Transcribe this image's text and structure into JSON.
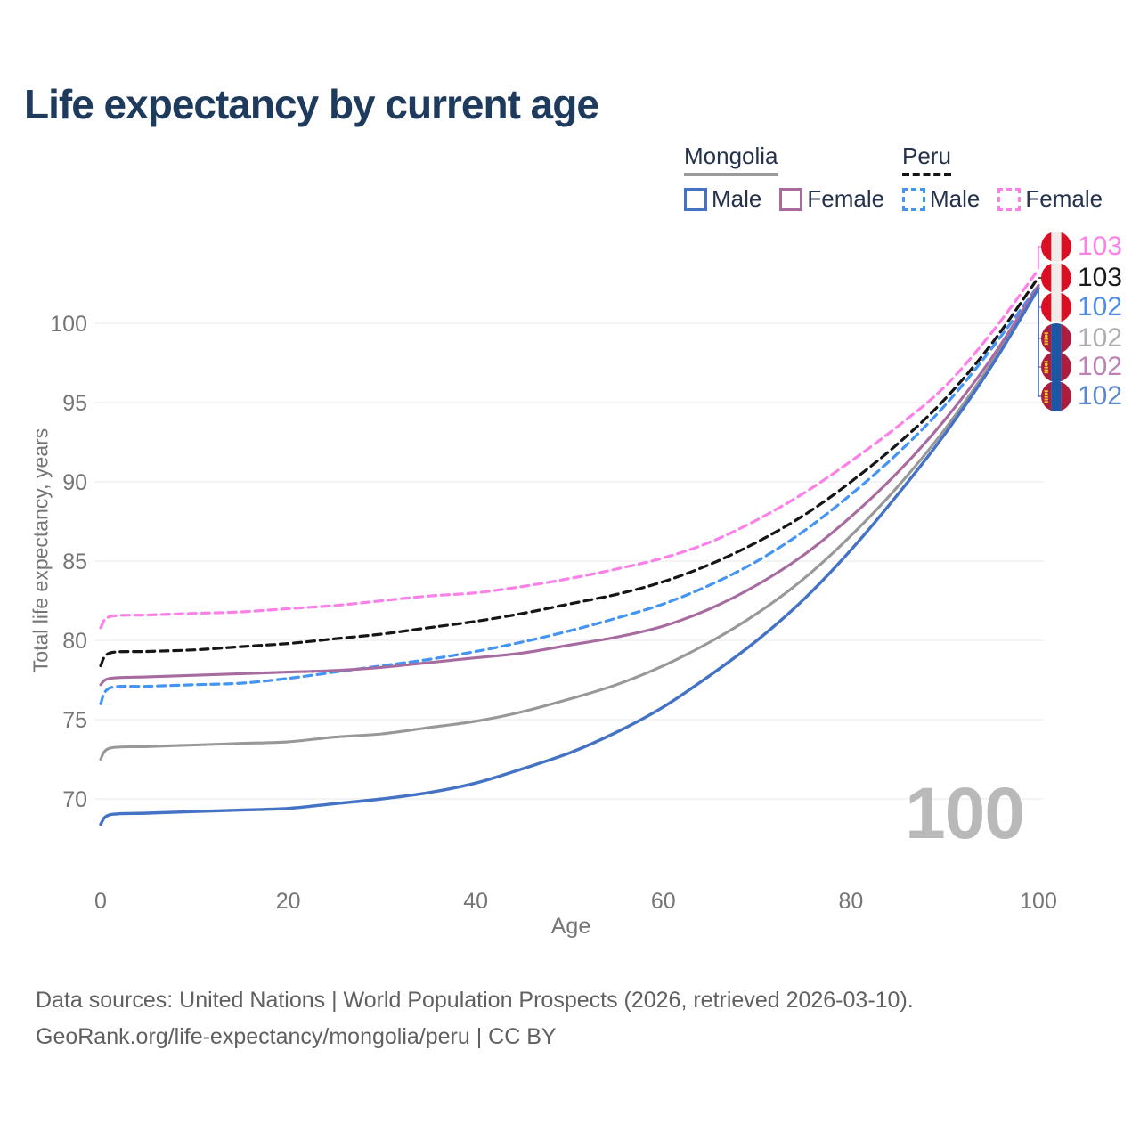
{
  "header": {
    "title": "Life expectancy by current age"
  },
  "legend": {
    "mongolia": {
      "label": "Mongolia",
      "male": "Male",
      "female": "Female"
    },
    "peru": {
      "label": "Peru",
      "male": "Male",
      "female": "Female"
    }
  },
  "y_axis": {
    "label": "Total life expectancy, years",
    "ticks": [
      70,
      75,
      80,
      85,
      90,
      95,
      100
    ]
  },
  "x_axis": {
    "label": "Age",
    "ticks": [
      0,
      20,
      40,
      60,
      80,
      100
    ]
  },
  "watermark": {
    "current_age": "100"
  },
  "end_labels": [
    {
      "series_id": "peru_female",
      "country": "Peru",
      "flag": "peru",
      "value": "103",
      "color": "#fb80e8"
    },
    {
      "series_id": "peru_avg",
      "country": "Peru",
      "flag": "peru",
      "value": "103",
      "color": "#1a1a1a"
    },
    {
      "series_id": "peru_male",
      "country": "Peru",
      "flag": "peru",
      "value": "102",
      "color": "#4a8ce9"
    },
    {
      "series_id": "mongolia_avg",
      "country": "Mongolia",
      "flag": "mongolia",
      "value": "102",
      "color": "#adadad"
    },
    {
      "series_id": "mongolia_female",
      "country": "Mongolia",
      "flag": "mongolia",
      "value": "102",
      "color": "#bc82b5"
    },
    {
      "series_id": "mongolia_male",
      "country": "Mongolia",
      "flag": "mongolia",
      "value": "102",
      "color": "#5b87cc"
    }
  ],
  "footer": {
    "line1": "Data sources: United Nations | World Population Prospects (2026, retrieved 2026-03-10).",
    "line2": "GeoRank.org/life-expectancy/mongolia/peru | CC BY"
  },
  "colors": {
    "title": "#1e3a5c",
    "legend_text": "#25324b",
    "axis_text": "#757575",
    "grid": "#e9e9e9",
    "footer_text": "#606060",
    "watermark": "#b9b9b9",
    "mongolia_underline": "#9a9a9a",
    "peru_underline": "#141414"
  },
  "flags": {
    "peru": {
      "red": "#d91023",
      "white": "#f0ece9"
    },
    "mongolia": {
      "red": "#ad1e3e",
      "blue": "#1c57a6",
      "yellow": "#f8cf2c"
    }
  },
  "chart_data": {
    "type": "line",
    "title": "Life expectancy by current age",
    "xlabel": "Age",
    "ylabel": "Total life expectancy, years",
    "xlim": [
      0,
      100
    ],
    "ylim": [
      66.5,
      104
    ],
    "grid": "horizontal-only",
    "legend_position": "top-right",
    "x_ages": [
      0,
      1,
      5,
      10,
      15,
      20,
      25,
      30,
      35,
      40,
      45,
      50,
      55,
      60,
      65,
      70,
      75,
      80,
      85,
      90,
      95,
      100
    ],
    "series": [
      {
        "id": "peru_female",
        "name": "Peru Female",
        "style": "dashed",
        "color": "#fb80e8",
        "values": [
          80.8,
          81.5,
          81.6,
          81.7,
          81.8,
          82.0,
          82.2,
          82.5,
          82.8,
          83.0,
          83.4,
          83.9,
          84.5,
          85.2,
          86.2,
          87.6,
          89.3,
          91.3,
          93.5,
          96.0,
          99.4,
          103.4
        ]
      },
      {
        "id": "peru_avg",
        "name": "Peru",
        "style": "dashed",
        "color": "#161616",
        "values": [
          78.4,
          79.2,
          79.3,
          79.4,
          79.6,
          79.8,
          80.1,
          80.4,
          80.8,
          81.2,
          81.7,
          82.3,
          82.9,
          83.7,
          84.8,
          86.2,
          87.9,
          90.0,
          92.4,
          95.2,
          98.7,
          102.9
        ]
      },
      {
        "id": "peru_male",
        "name": "Peru Male",
        "style": "dashed",
        "color": "#4494f2",
        "values": [
          76.0,
          77.0,
          77.1,
          77.2,
          77.3,
          77.6,
          78.0,
          78.4,
          78.8,
          79.3,
          79.9,
          80.6,
          81.4,
          82.3,
          83.5,
          85.0,
          86.9,
          89.2,
          91.8,
          94.8,
          98.4,
          102.4
        ]
      },
      {
        "id": "mongolia_avg",
        "name": "Mongolia",
        "style": "solid",
        "color": "#989898",
        "values": [
          72.5,
          73.2,
          73.3,
          73.4,
          73.5,
          73.6,
          73.9,
          74.1,
          74.5,
          74.9,
          75.5,
          76.3,
          77.2,
          78.4,
          79.9,
          81.7,
          83.9,
          86.6,
          89.7,
          93.3,
          97.5,
          102.3
        ]
      },
      {
        "id": "mongolia_female",
        "name": "Mongolia Female",
        "style": "solid",
        "color": "#a86ba0",
        "values": [
          77.2,
          77.6,
          77.7,
          77.8,
          77.9,
          78.0,
          78.1,
          78.3,
          78.6,
          78.9,
          79.2,
          79.7,
          80.2,
          80.9,
          82.0,
          83.5,
          85.4,
          87.8,
          90.6,
          93.9,
          97.8,
          102.4
        ]
      },
      {
        "id": "mongolia_male",
        "name": "Mongolia Male",
        "style": "solid",
        "color": "#4472c4",
        "values": [
          68.4,
          69.0,
          69.1,
          69.2,
          69.3,
          69.4,
          69.7,
          70.0,
          70.4,
          71.0,
          71.9,
          72.9,
          74.2,
          75.8,
          77.8,
          80.0,
          82.6,
          85.7,
          89.2,
          93.0,
          97.3,
          102.2
        ]
      }
    ]
  }
}
